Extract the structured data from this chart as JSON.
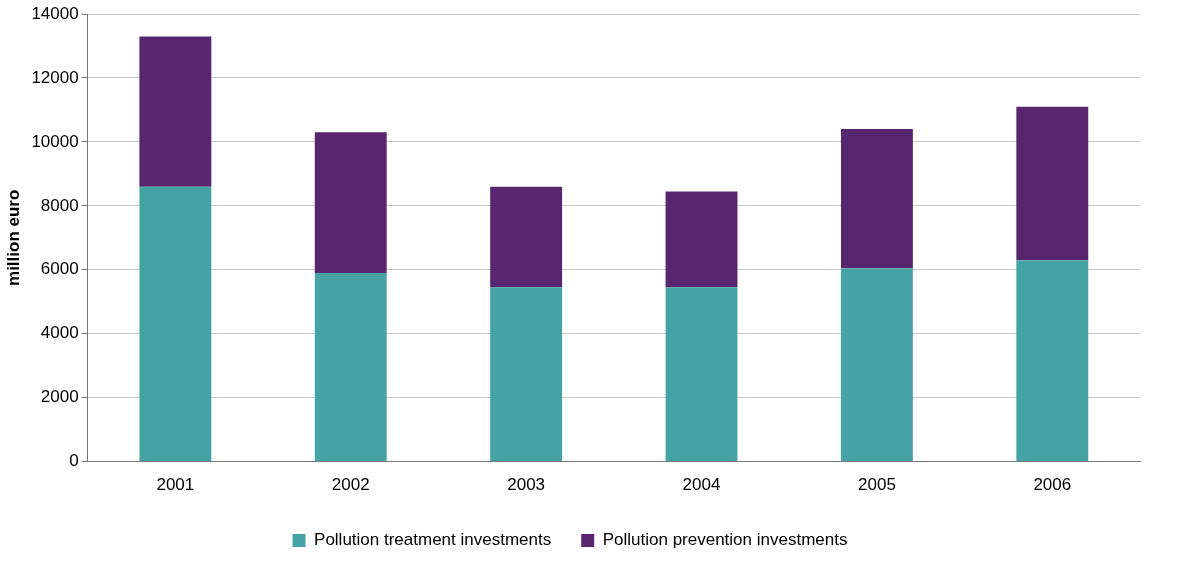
{
  "chart_data": {
    "type": "bar",
    "ylabel": "million euro",
    "categories": [
      "2001",
      "2002",
      "2003",
      "2004",
      "2005",
      "2006"
    ],
    "series": [
      {
        "name": "Pollution treatment investments",
        "color": "#46a3a5",
        "values": [
          8600,
          5900,
          5450,
          5450,
          6050,
          6300
        ]
      },
      {
        "name": "Pollution prevention investments",
        "color": "#57266f",
        "values": [
          4700,
          4400,
          3150,
          3000,
          4350,
          4800
        ]
      }
    ],
    "stacked": true,
    "ylim": [
      0,
      14000
    ],
    "yticks": [
      0,
      2000,
      4000,
      6000,
      8000,
      10000,
      12000,
      14000
    ],
    "grid": "y",
    "legend": "bottom"
  }
}
